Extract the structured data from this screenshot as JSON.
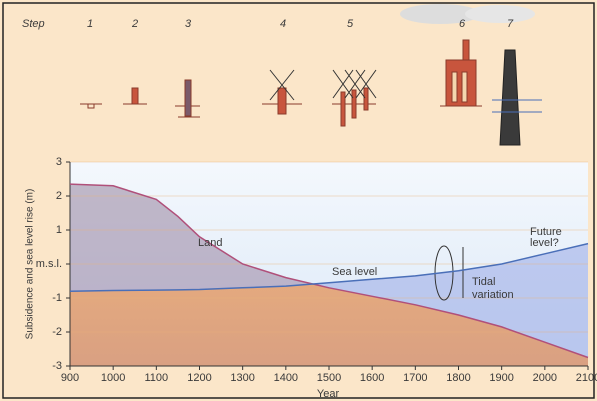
{
  "chart_data": {
    "type": "line",
    "step_label": "Step",
    "steps": [
      "1",
      "2",
      "3",
      "4",
      "5",
      "6",
      "7"
    ],
    "xlabel": "Year",
    "ylabel": "Subsidence and sea level rise (m)",
    "x": [
      900,
      1000,
      1100,
      1150,
      1200,
      1300,
      1400,
      1500,
      1600,
      1700,
      1800,
      1900,
      2000,
      2100
    ],
    "series": [
      {
        "name": "Land",
        "color": "#b0507a",
        "values": [
          2.35,
          2.3,
          1.9,
          1.4,
          0.8,
          0.0,
          -0.4,
          -0.7,
          -0.95,
          -1.2,
          -1.5,
          -1.85,
          -2.3,
          -2.75
        ]
      },
      {
        "name": "Sea level",
        "color": "#4a6fb8",
        "values": [
          -0.8,
          -0.78,
          -0.77,
          -0.76,
          -0.75,
          -0.7,
          -0.65,
          -0.55,
          -0.45,
          -0.35,
          -0.2,
          0.0,
          0.3,
          0.6
        ]
      }
    ],
    "annotations": {
      "tidal": [
        "Tidal",
        "variation"
      ],
      "future": [
        "Future",
        "level?"
      ]
    },
    "xlim": [
      900,
      2100
    ],
    "xticks": [
      900,
      1000,
      1100,
      1200,
      1300,
      1400,
      1500,
      1600,
      1700,
      1800,
      1900,
      2000,
      2100
    ],
    "ylim": [
      -3,
      3
    ],
    "yticks": [
      3,
      2,
      1,
      {
        "value": 0,
        "label": "m.s.l."
      },
      -1,
      -2,
      -3
    ],
    "grid": true
  }
}
